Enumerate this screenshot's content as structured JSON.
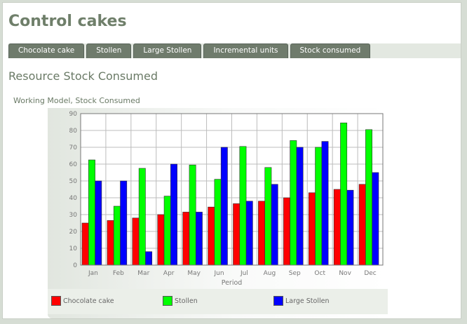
{
  "app": {
    "title": "Control cakes"
  },
  "tabs": [
    {
      "label": "Chocolate cake"
    },
    {
      "label": "Stollen"
    },
    {
      "label": "Large Stollen"
    },
    {
      "label": "Incremental units"
    },
    {
      "label": "Stock consumed"
    }
  ],
  "section": {
    "title": "Resource Stock Consumed"
  },
  "chart_data": {
    "type": "bar",
    "title": "Working Model, Stock Consumed",
    "xlabel": "Period",
    "ylabel": "",
    "ylim": [
      0,
      90
    ],
    "yticks": [
      0,
      10,
      20,
      30,
      40,
      50,
      60,
      70,
      80,
      90
    ],
    "grid": true,
    "legend_position": "bottom",
    "categories": [
      "Jan",
      "Feb",
      "Mar",
      "Apr",
      "May",
      "Jun",
      "Jul",
      "Aug",
      "Sep",
      "Oct",
      "Nov",
      "Dec"
    ],
    "series": [
      {
        "name": "Chocolate cake",
        "color": "#ff0000",
        "values": [
          25,
          26.5,
          28,
          30,
          31.5,
          34.5,
          36.5,
          38,
          40,
          43,
          45,
          48
        ]
      },
      {
        "name": "Stollen",
        "color": "#00ff00",
        "values": [
          62.5,
          35,
          57.5,
          41,
          59.5,
          51,
          70.5,
          58,
          74,
          70,
          84.5,
          80.5
        ]
      },
      {
        "name": "Large Stollen",
        "color": "#0000ff",
        "values": [
          50,
          50,
          8,
          60,
          31.5,
          70,
          38,
          48,
          70,
          73.5,
          44.5,
          55
        ]
      }
    ]
  }
}
